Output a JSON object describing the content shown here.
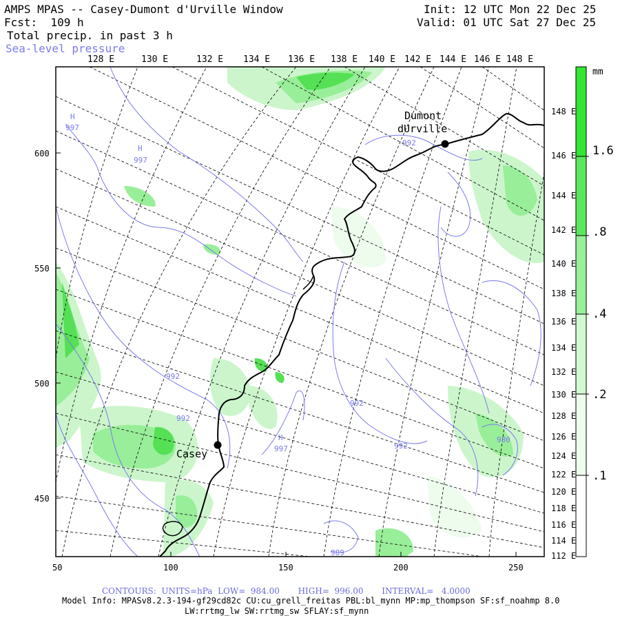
{
  "header": {
    "title": "AMPS MPAS -- Casey-Dumont d'Urville Window",
    "init": "Init: 12 UTC Mon 22 Dec 25",
    "forecast": "Fcst:  109 h",
    "valid": "Valid: 01 UTC Sat 27 Dec 25",
    "field1": "Total precip. in past 3 h",
    "field2": "Sea-level pressure"
  },
  "map": {
    "top_longitude_labels": [
      "128 E",
      "130 E",
      "132 E",
      "134 E",
      "136 E",
      "138 E",
      "140 E",
      "142 E",
      "144 E",
      "146 E",
      "148 E"
    ],
    "right_longitude_labels": [
      "148 E",
      "146 E",
      "144 E",
      "142 E",
      "140 E",
      "138 E",
      "136 E",
      "134 E",
      "132 E",
      "130 E",
      "128 E",
      "126 E",
      "124 E",
      "122 E",
      "120 E",
      "118 E",
      "116 E",
      "114 E",
      "112 E"
    ],
    "x_ticks": [
      "50",
      "100",
      "150",
      "200",
      "250"
    ],
    "y_ticks": [
      "600",
      "550",
      "500",
      "450"
    ],
    "stations": [
      {
        "name_line1": "Dumont",
        "name_line2": "dUrville"
      },
      {
        "name_line1": "Casey"
      }
    ],
    "pressure_labels": [
      "992",
      "992",
      "992",
      "992",
      "992",
      "980",
      "997",
      "997",
      "989"
    ],
    "high_labels": [
      "H",
      "H",
      "H"
    ],
    "colors": {
      "contour": "#7a7aee",
      "coast": "#000000",
      "grid": "#000000",
      "precip_light": "#ccf5cc",
      "precip_mid": "#99ee99",
      "precip_heavy": "#55e055"
    }
  },
  "colorbar": {
    "unit": "mm",
    "labels": [
      "1.6",
      ".8",
      ".4",
      ".2",
      ".1"
    ],
    "colors": [
      "#32e632",
      "#5ae85a",
      "#98f098",
      "#d2f8d2",
      "#eefcee",
      "#ffffff"
    ]
  },
  "footer": {
    "contours": "CONTOURS:  UNITS=hPa  LOW=  984.00       HIGH=  996.00       INTERVAL=   4.0000",
    "model_info": "Model Info: MPASv8.2.3-194-gf29cd82c CU:cu_grell_freitas PBL:bl_mynn MP:mp_thompson SF:sf_noahmp 8.0",
    "model_info2": "LW:rrtmg_lw SW:rrtmg_sw SFLAY:sf_mynn"
  }
}
